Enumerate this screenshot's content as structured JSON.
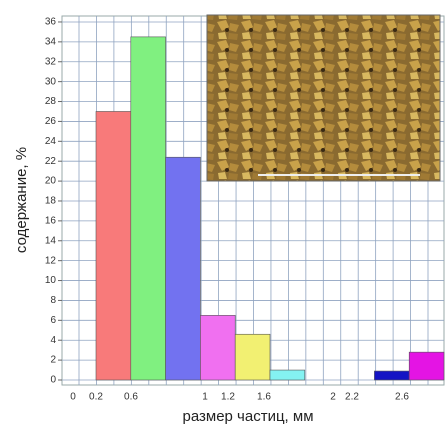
{
  "chart_data": {
    "type": "bar",
    "ylabel": "содержание, %",
    "xlabel": "размер частиц, мм",
    "categories": [
      null,
      null,
      null,
      null,
      null,
      null,
      null,
      null,
      null,
      null
    ],
    "values": [
      27,
      34.5,
      22.4,
      6.5,
      4.6,
      1.0,
      0,
      0,
      0.9,
      2.8
    ],
    "colors": [
      "#f87a7a",
      "#80f080",
      "#7272f0",
      "#f070f0",
      "#f2f072",
      "#84f2f2",
      "#f87a7a",
      "#80f080",
      "#1414c4",
      "#e414e4"
    ],
    "ylim": [
      0,
      36.6
    ],
    "yticks": [
      0,
      2,
      4,
      6,
      8,
      10,
      12,
      14,
      16,
      18,
      20,
      22,
      24,
      26,
      28,
      30,
      32,
      34,
      36
    ],
    "xtick_labels": [
      "0",
      "0.2",
      "0.6",
      "1",
      "1.2",
      "1.6",
      "2",
      "2.2",
      "2.6"
    ],
    "grid": true
  }
}
